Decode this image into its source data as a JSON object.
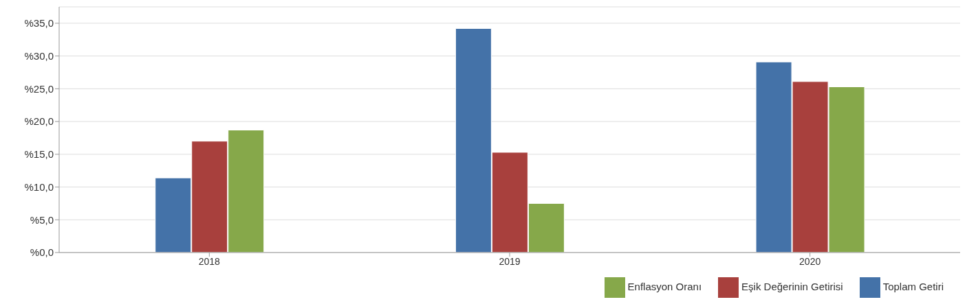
{
  "chart_data": {
    "type": "bar",
    "categories": [
      "2018",
      "2019",
      "2020"
    ],
    "series": [
      {
        "name": "Toplam Getiri",
        "color": "#4472a8",
        "values": [
          11.4,
          34.2,
          29.1
        ]
      },
      {
        "name": "Eşik Değerinin Getirisi",
        "color": "#a8403d",
        "values": [
          17.0,
          15.3,
          26.1
        ]
      },
      {
        "name": "Enflasyon Oranı",
        "color": "#86a84a",
        "values": [
          18.7,
          7.5,
          25.3
        ]
      }
    ],
    "ylim": [
      0,
      37.5
    ],
    "yticks": [
      {
        "value": 0,
        "label": "%0,0"
      },
      {
        "value": 5,
        "label": "%5,0"
      },
      {
        "value": 10,
        "label": "%10,0"
      },
      {
        "value": 15,
        "label": "%15,0"
      },
      {
        "value": 20,
        "label": "%20,0"
      },
      {
        "value": 25,
        "label": "%25,0"
      },
      {
        "value": 30,
        "label": "%30,0"
      },
      {
        "value": 35,
        "label": "%35,0"
      }
    ],
    "grid": "y",
    "legend": "bottom right"
  }
}
